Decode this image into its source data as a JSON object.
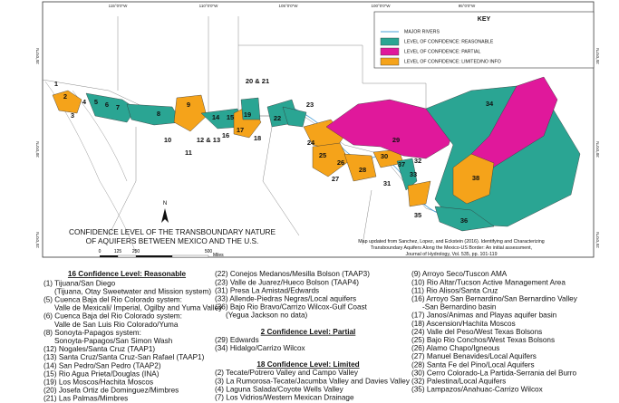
{
  "key": {
    "title": "KEY",
    "items": [
      "MAJOR RIVERS",
      "LEVEL OF CONFIDENCE: REASONABLE",
      "LEVEL OF CONFIDENCE: PARTIAL",
      "LEVEL OF CONFIDENCE: LIMITED/NO INFO"
    ]
  },
  "longitudes": [
    "115°0'0\"W",
    "110°0'0\"W",
    "105°0'0\"W",
    "100°0'0\"W",
    "95°0'0\"W"
  ],
  "latitudes": [
    "35°0'0\"N",
    "30°0'0\"N",
    "25°0'0\"N"
  ],
  "map_labels": [
    "1",
    "2",
    "3",
    "4",
    "5",
    "6",
    "7",
    "8",
    "9",
    "10",
    "11",
    "12 & 13",
    "14",
    "15",
    "16",
    "17",
    "18",
    "19",
    "20 & 21",
    "22",
    "23",
    "24",
    "25",
    "26",
    "27",
    "28",
    "29",
    "30",
    "31",
    "32",
    "33",
    "34",
    "35",
    "36",
    "37",
    "38"
  ],
  "map_title": [
    "CONFIDENCE LEVEL OF THE TRANSBOUNDARY NATURE",
    "OF AQUIFERS BETWEEN MEXICO AND THE U.S."
  ],
  "source_note": [
    "Map updated from Sanchez, Lopez, and Eckstein (2016). Identifying and Characterizing",
    "Transboundary Aquifers Along the Mexico-US Border: An initial assessment,",
    "Journal of Hydrology, Vol. 535, pp. 101-119"
  ],
  "north": "N",
  "scale": {
    "ticks": [
      "0",
      "125",
      "250",
      "500"
    ],
    "unit": "Miles"
  },
  "columns": [
    {
      "sections": [
        {
          "heading": "16 Confidence Level: Reasonable",
          "items": [
            "(1) Tijuana/San Diego",
            "(Tijuana, Otay Sweetwater and Mission system)",
            "(5) Cuenca Baja del Rio Colorado system:",
            "Valle de Mexicali/ Imperial, Ogilby and Yuma Valley",
            "(6) Cuenca Baja del Rio Colorado system:",
            "Valle de San Luis Rio Colorado/Yuma",
            "(8) Sonoyta-Papagos system:",
            "Sonoyta-Papagos/San Simon Wash",
            "(12) Nogales/Santa Cruz (TAAP1)",
            "(13) Santa Cruz/Santa Cruz-San Rafael (TAAP1)",
            "(14) San Pedro/San Pedro (TAAP2)",
            "(15) Rio Agua Prieta/Douglas (INA)",
            "(19) Los Moscos/Hachita Moscos",
            "(20) Josefa Ortiz de Dominguez/Mimbres",
            "(21) Las Palmas/Mimbres"
          ]
        }
      ]
    },
    {
      "sections": [
        {
          "items": [
            "(22) Conejos Medanos/Mesilla Bolson (TAAP3)",
            "(23) Valle de Juarez/Hueco Bolson (TAAP4)",
            "(31) Presa La Amistad/Edwards",
            "(33) Allende-Piedras Negras/Local aquifers",
            "(36) Bajo Rio Bravo/Carrizo Wilcox-Gulf Coast",
            "(Yegua Jackson no data)"
          ]
        },
        {
          "heading": "2 Confidence Level: Partial",
          "items": [
            "(29) Edwards",
            "(34) Hidalgo/Carrizo Wilcox"
          ]
        },
        {
          "heading": "18 Confidence Level: Limited",
          "items": [
            "(2) Tecate/Potrero Valley and Campo Valley",
            "(3) La Rumorosa-Tecate/Jacumba Valley and Davies Valley",
            "(4) Laguna Salada/Coyote Wells Valley",
            "(7) Los Vidrios/Western Mexican Drainage"
          ]
        }
      ]
    },
    {
      "sections": [
        {
          "items": [
            "(9) Arroyo Seco/Tuscon AMA",
            "(10) Rio Altar/Tucson Active Management Area",
            "(11) Rio Alisos/Santa Cruz",
            "(16) Arroyo San Bernardino/San Bernardino Valley",
            "-San Bernardino basin",
            "(17) Janos/Animas and Playas aquifer basin",
            "(18) Ascension/Hachita Moscos",
            "(24) Valle del Peso/West Texas Bolsons",
            "(25) Bajo Rio Conchos/West Texas Bolsons",
            "(26) Alamo Chapo/Igneous",
            "(27) Manuel Benavides/Local Aquifers",
            "(28) Santa Fe del Pino/Local Aquifers",
            "(30) Cerro Colorado-La Partida-Serrania del Burro",
            "(32) Palestina/Local Aquifers",
            "(35) Lampazos/Anahuac-Carrizo Wilcox"
          ]
        }
      ]
    }
  ]
}
